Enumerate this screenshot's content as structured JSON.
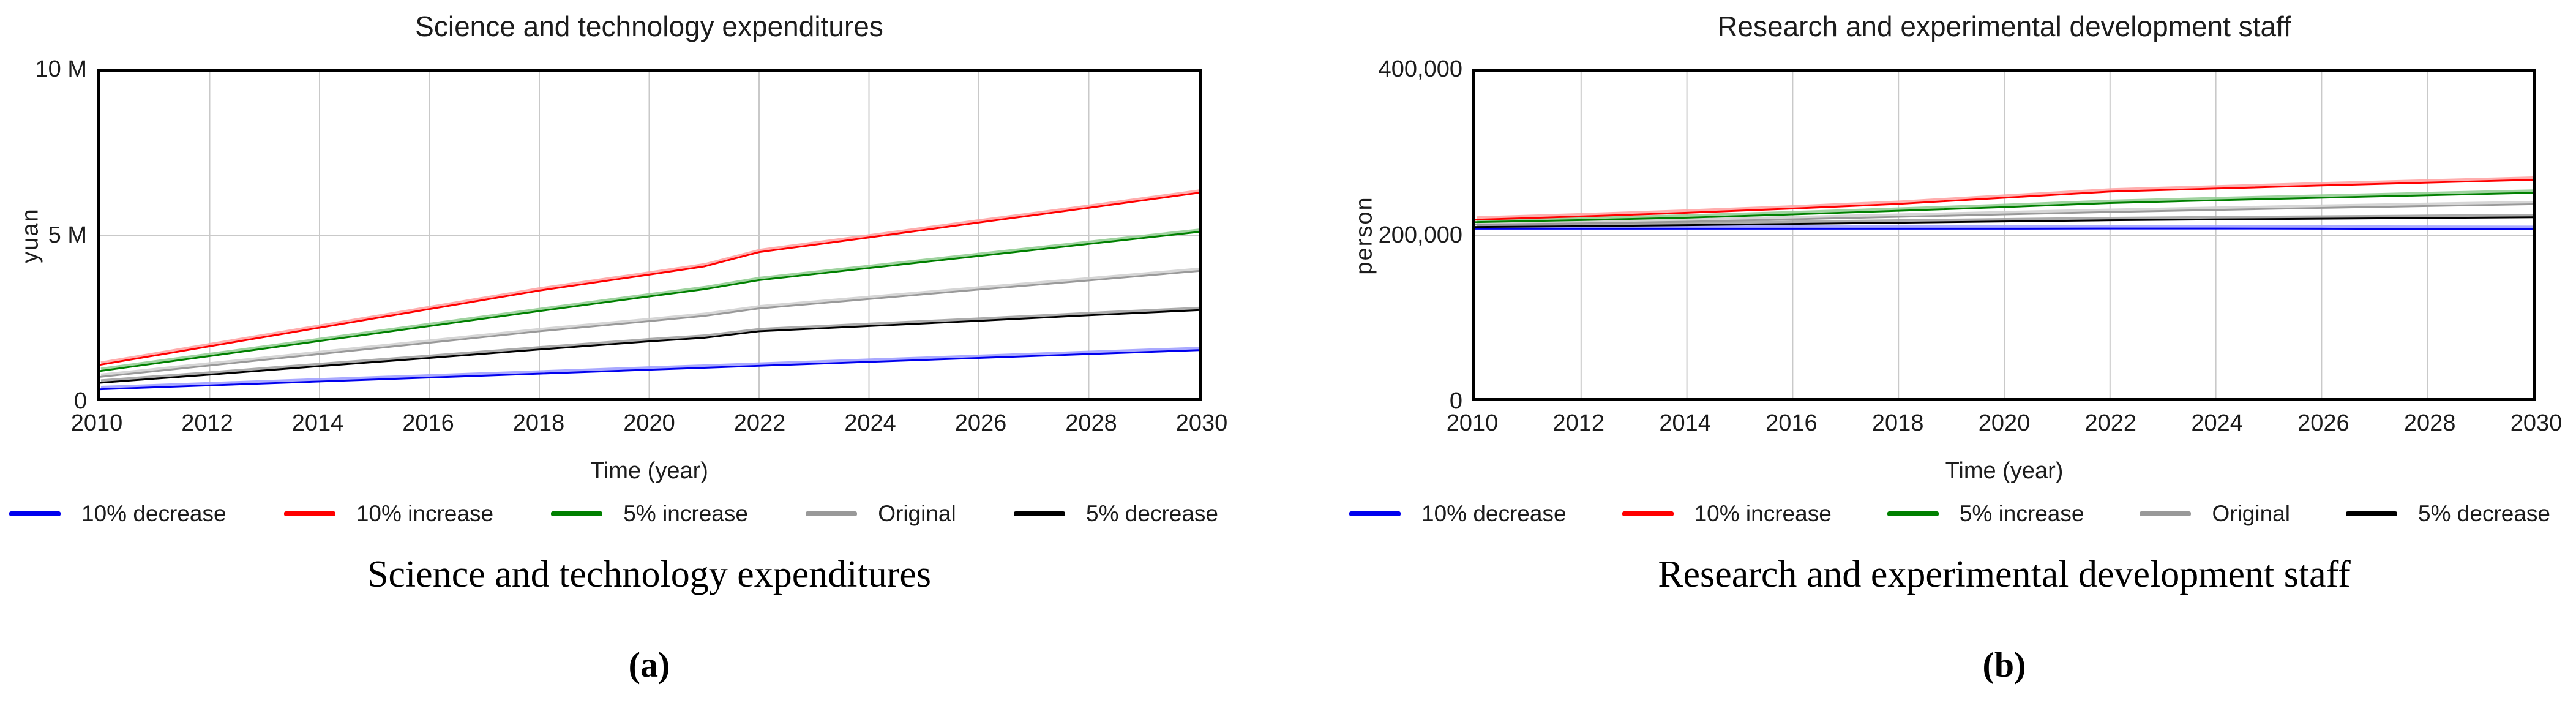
{
  "style": {
    "grid_color": "#c9c9c9",
    "frame_color": "#000000",
    "background": "#ffffff"
  },
  "chart_data": [
    {
      "type": "line",
      "title": "Science and technology expenditures",
      "caption": "Science and technology expenditures",
      "panel_label": "(a)",
      "xlabel": "Time (year)",
      "ylabel": "yuan",
      "xlim": [
        2010,
        2030
      ],
      "ylim": [
        0,
        10000000
      ],
      "xticks": [
        2010,
        2012,
        2014,
        2016,
        2018,
        2020,
        2022,
        2024,
        2026,
        2028,
        2030
      ],
      "yticks": [
        {
          "value": 0,
          "label": "0"
        },
        {
          "value": 5000000,
          "label": "5 M"
        },
        {
          "value": 10000000,
          "label": "10 M"
        }
      ],
      "grid_x": [
        2012,
        2014,
        2016,
        2018,
        2020,
        2022,
        2024,
        2026,
        2028
      ],
      "grid_y": [
        5000000
      ],
      "legend": [
        {
          "label": "10% decrease",
          "color": "#0000ee"
        },
        {
          "label": "10% increase",
          "color": "#ff0000"
        },
        {
          "label": "5% increase",
          "color": "#008000"
        },
        {
          "label": "Original",
          "color": "#999999"
        },
        {
          "label": "5% decrease",
          "color": "#000000"
        }
      ],
      "series": [
        {
          "name": "10% decrease",
          "color": "#0000ee",
          "halo": "#9a9aff",
          "x": [
            2010,
            2012,
            2014,
            2016,
            2018,
            2020,
            2021,
            2022,
            2024,
            2026,
            2028,
            2030
          ],
          "y": [
            270000,
            390000,
            510000,
            630000,
            750000,
            870000,
            930000,
            990000,
            1110000,
            1230000,
            1350000,
            1470000
          ]
        },
        {
          "name": "5% decrease",
          "color": "#000000",
          "halo": "#9e9e9e",
          "x": [
            2010,
            2012,
            2014,
            2016,
            2018,
            2020,
            2021,
            2022,
            2024,
            2026,
            2028,
            2030
          ],
          "y": [
            470000,
            720000,
            980000,
            1230000,
            1490000,
            1740000,
            1850000,
            2050000,
            2210000,
            2370000,
            2540000,
            2700000
          ]
        },
        {
          "name": "Original",
          "color": "#999999",
          "halo": "#cfcfcf",
          "x": [
            2010,
            2012,
            2014,
            2016,
            2018,
            2020,
            2021,
            2022,
            2024,
            2026,
            2028,
            2030
          ],
          "y": [
            650000,
            1000000,
            1350000,
            1700000,
            2050000,
            2360000,
            2520000,
            2750000,
            3040000,
            3330000,
            3610000,
            3900000
          ]
        },
        {
          "name": "5% increase",
          "color": "#008000",
          "halo": "#8fcb8f",
          "x": [
            2010,
            2012,
            2014,
            2016,
            2018,
            2020,
            2021,
            2022,
            2024,
            2026,
            2028,
            2030
          ],
          "y": [
            830000,
            1290000,
            1750000,
            2210000,
            2670000,
            3120000,
            3340000,
            3620000,
            3990000,
            4360000,
            4730000,
            5100000
          ]
        },
        {
          "name": "10% increase",
          "color": "#ff0000",
          "halo": "#ffa0a0",
          "x": [
            2010,
            2012,
            2014,
            2016,
            2018,
            2020,
            2021,
            2022,
            2024,
            2026,
            2028,
            2030
          ],
          "y": [
            1020000,
            1590000,
            2160000,
            2730000,
            3300000,
            3790000,
            4040000,
            4480000,
            4930000,
            5390000,
            5840000,
            6300000
          ]
        }
      ]
    },
    {
      "type": "line",
      "title": "Research and experimental development staff",
      "caption": "Research and experimental development staff",
      "panel_label": "(b)",
      "xlabel": "Time (year)",
      "ylabel": "person",
      "xlim": [
        2010,
        2030
      ],
      "ylim": [
        0,
        400000
      ],
      "xticks": [
        2010,
        2012,
        2014,
        2016,
        2018,
        2020,
        2022,
        2024,
        2026,
        2028,
        2030
      ],
      "yticks": [
        {
          "value": 0,
          "label": "0"
        },
        {
          "value": 200000,
          "label": "200,000"
        },
        {
          "value": 400000,
          "label": "400,000"
        }
      ],
      "grid_x": [
        2012,
        2014,
        2016,
        2018,
        2020,
        2022,
        2024,
        2026,
        2028
      ],
      "grid_y": [
        200000
      ],
      "legend": [
        {
          "label": "10% decrease",
          "color": "#0000ee"
        },
        {
          "label": "10% increase",
          "color": "#ff0000"
        },
        {
          "label": "5% increase",
          "color": "#008000"
        },
        {
          "label": "Original",
          "color": "#999999"
        },
        {
          "label": "5% decrease",
          "color": "#000000"
        }
      ],
      "series": [
        {
          "name": "10% decrease",
          "color": "#0000ee",
          "halo": "#9a9aff",
          "x": [
            2010,
            2012,
            2014,
            2016,
            2018,
            2020,
            2022,
            2024,
            2026,
            2028,
            2030
          ],
          "y": [
            208000,
            208000,
            208000,
            208000,
            208000,
            208000,
            208200,
            208200,
            208000,
            207700,
            207500
          ]
        },
        {
          "name": "5% decrease",
          "color": "#000000",
          "halo": "#9e9e9e",
          "x": [
            2010,
            2012,
            2014,
            2016,
            2018,
            2020,
            2022,
            2024,
            2026,
            2028,
            2030
          ],
          "y": [
            210000,
            211000,
            212300,
            213800,
            215300,
            216800,
            218300,
            219300,
            220200,
            221100,
            222000
          ]
        },
        {
          "name": "Original",
          "color": "#999999",
          "halo": "#cfcfcf",
          "x": [
            2010,
            2012,
            2014,
            2016,
            2018,
            2020,
            2022,
            2024,
            2026,
            2028,
            2030
          ],
          "y": [
            213000,
            214500,
            216500,
            219500,
            222500,
            225500,
            228500,
            231000,
            233500,
            235800,
            238000
          ]
        },
        {
          "name": "5% increase",
          "color": "#008000",
          "halo": "#8fcb8f",
          "x": [
            2010,
            2012,
            2014,
            2016,
            2018,
            2020,
            2022,
            2024,
            2026,
            2028,
            2030
          ],
          "y": [
            216000,
            218500,
            221500,
            225500,
            230000,
            234500,
            239500,
            242800,
            246000,
            249000,
            252000
          ]
        },
        {
          "name": "10% increase",
          "color": "#ff0000",
          "halo": "#ffa0a0",
          "x": [
            2010,
            2012,
            2014,
            2016,
            2018,
            2020,
            2022,
            2024,
            2026,
            2028,
            2030
          ],
          "y": [
            219000,
            223000,
            227500,
            232700,
            238400,
            246000,
            253500,
            257300,
            261000,
            264500,
            268000
          ]
        }
      ]
    }
  ]
}
